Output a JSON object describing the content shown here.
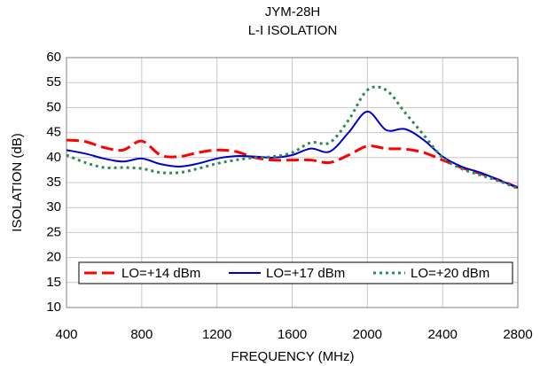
{
  "chart_data": {
    "type": "line",
    "title": "JYM-28H",
    "subtitle": "L-I ISOLATION",
    "x_label": "FREQUENCY (MHz)",
    "y_label": "ISOLATION (dB)",
    "x": [
      400,
      500,
      600,
      700,
      800,
      900,
      1000,
      1100,
      1200,
      1300,
      1400,
      1500,
      1600,
      1700,
      1800,
      1900,
      2000,
      2100,
      2200,
      2300,
      2400,
      2500,
      2600,
      2700,
      2800
    ],
    "series": [
      {
        "name": "LO=+14 dBm",
        "color": "#ff0000",
        "dash": "dashed",
        "values": [
          43.5,
          43.2,
          42,
          41.5,
          43.3,
          40.5,
          40.2,
          41,
          41.5,
          41.2,
          40,
          39.5,
          39.5,
          39.5,
          39,
          40.5,
          42.3,
          41.8,
          41.7,
          41,
          39.5,
          38,
          36.8,
          35.5,
          34
        ]
      },
      {
        "name": "LO=+17 dBm",
        "color": "#0000cc",
        "dash": "solid",
        "values": [
          41.5,
          40.8,
          39.8,
          39.2,
          39.8,
          38.7,
          38.2,
          38.8,
          39.8,
          40.3,
          40.2,
          40,
          40.5,
          41.8,
          41.2,
          45,
          49.2,
          45.5,
          45.7,
          43.5,
          40.2,
          38.2,
          37,
          35.5,
          34
        ]
      },
      {
        "name": "LO=+20 dBm",
        "color": "#2e8b57",
        "dash": "dotted",
        "values": [
          40.5,
          39,
          38,
          38,
          37.8,
          37,
          37,
          37.8,
          38.8,
          39.5,
          40,
          40.2,
          41,
          43,
          43,
          47.5,
          53.5,
          53.5,
          49,
          44.5,
          40,
          37.8,
          36.5,
          35.3,
          33.8
        ]
      }
    ],
    "xlim": [
      400,
      2800
    ],
    "xticks": [
      400,
      800,
      1200,
      1600,
      2000,
      2400,
      2800
    ],
    "ylim": [
      10,
      60
    ],
    "yticks": [
      10,
      15,
      20,
      25,
      30,
      35,
      40,
      45,
      50,
      55,
      60
    ],
    "grid": true,
    "legend": "bottom"
  }
}
